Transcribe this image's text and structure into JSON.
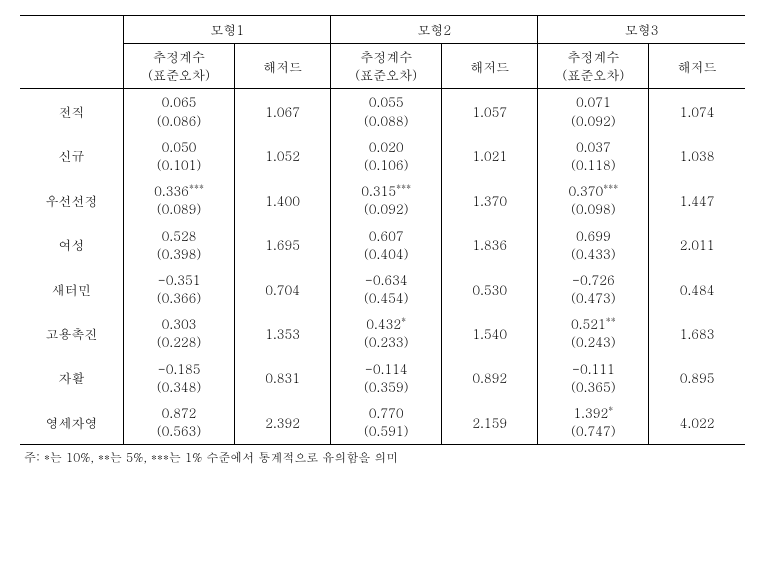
{
  "header": {
    "models": [
      "모형1",
      "모형2",
      "모형3"
    ],
    "sub": {
      "coef": "추정계수",
      "se": "(표준오차)",
      "hazard": "해저드"
    }
  },
  "rows": [
    {
      "label": "전직",
      "m1": {
        "coef": "0.065",
        "se": "(0.086)",
        "hazard": "1.067"
      },
      "m2": {
        "coef": "0.055",
        "se": "(0.088)",
        "hazard": "1.057"
      },
      "m3": {
        "coef": "0.071",
        "se": "(0.092)",
        "hazard": "1.074"
      },
      "sig1": "",
      "sig2": "",
      "sig3": ""
    },
    {
      "label": "신규",
      "m1": {
        "coef": "0.050",
        "se": "(0.101)",
        "hazard": "1.052"
      },
      "m2": {
        "coef": "0.020",
        "se": "(0.106)",
        "hazard": "1.021"
      },
      "m3": {
        "coef": "0.037",
        "se": "(0.118)",
        "hazard": "1.038"
      },
      "sig1": "",
      "sig2": "",
      "sig3": ""
    },
    {
      "label": "우선선정",
      "m1": {
        "coef": "0.336",
        "se": "(0.089)",
        "hazard": "1.400"
      },
      "m2": {
        "coef": "0.315",
        "se": "(0.092)",
        "hazard": "1.370"
      },
      "m3": {
        "coef": "0.370",
        "se": "(0.098)",
        "hazard": "1.447"
      },
      "sig1": "***",
      "sig2": "***",
      "sig3": "***"
    },
    {
      "label": "여성",
      "m1": {
        "coef": "0.528",
        "se": "(0.398)",
        "hazard": "1.695"
      },
      "m2": {
        "coef": "0.607",
        "se": "(0.404)",
        "hazard": "1.836"
      },
      "m3": {
        "coef": "0.699",
        "se": "(0.433)",
        "hazard": "2.011"
      },
      "sig1": "",
      "sig2": "",
      "sig3": ""
    },
    {
      "label": "새터민",
      "m1": {
        "coef": "-0.351",
        "se": "(0.366)",
        "hazard": "0.704"
      },
      "m2": {
        "coef": "-0.634",
        "se": "(0.454)",
        "hazard": "0.530"
      },
      "m3": {
        "coef": "-0.726",
        "se": "(0.473)",
        "hazard": "0.484"
      },
      "sig1": "",
      "sig2": "",
      "sig3": ""
    },
    {
      "label": "고용촉진",
      "m1": {
        "coef": "0.303",
        "se": "(0.228)",
        "hazard": "1.353"
      },
      "m2": {
        "coef": "0.432",
        "se": "(0.233)",
        "hazard": "1.540"
      },
      "m3": {
        "coef": "0.521",
        "se": "(0.243)",
        "hazard": "1.683"
      },
      "sig1": "",
      "sig2": "*",
      "sig3": "**"
    },
    {
      "label": "자활",
      "m1": {
        "coef": "-0.185",
        "se": "(0.348)",
        "hazard": "0.831"
      },
      "m2": {
        "coef": "-0.114",
        "se": "(0.359)",
        "hazard": "0.892"
      },
      "m3": {
        "coef": "-0.111",
        "se": "(0.365)",
        "hazard": "0.895"
      },
      "sig1": "",
      "sig2": "",
      "sig3": ""
    },
    {
      "label": "영세자영",
      "m1": {
        "coef": "0.872",
        "se": "(0.563)",
        "hazard": "2.392"
      },
      "m2": {
        "coef": "0.770",
        "se": "(0.591)",
        "hazard": "2.159"
      },
      "m3": {
        "coef": "1.392",
        "se": "(0.747)",
        "hazard": "4.022"
      },
      "sig1": "",
      "sig2": "",
      "sig3": "*"
    }
  ],
  "note": "주: *는 10%, **는 5%, ***는 1% 수준에서 통계적으로 유의함을 의미"
}
